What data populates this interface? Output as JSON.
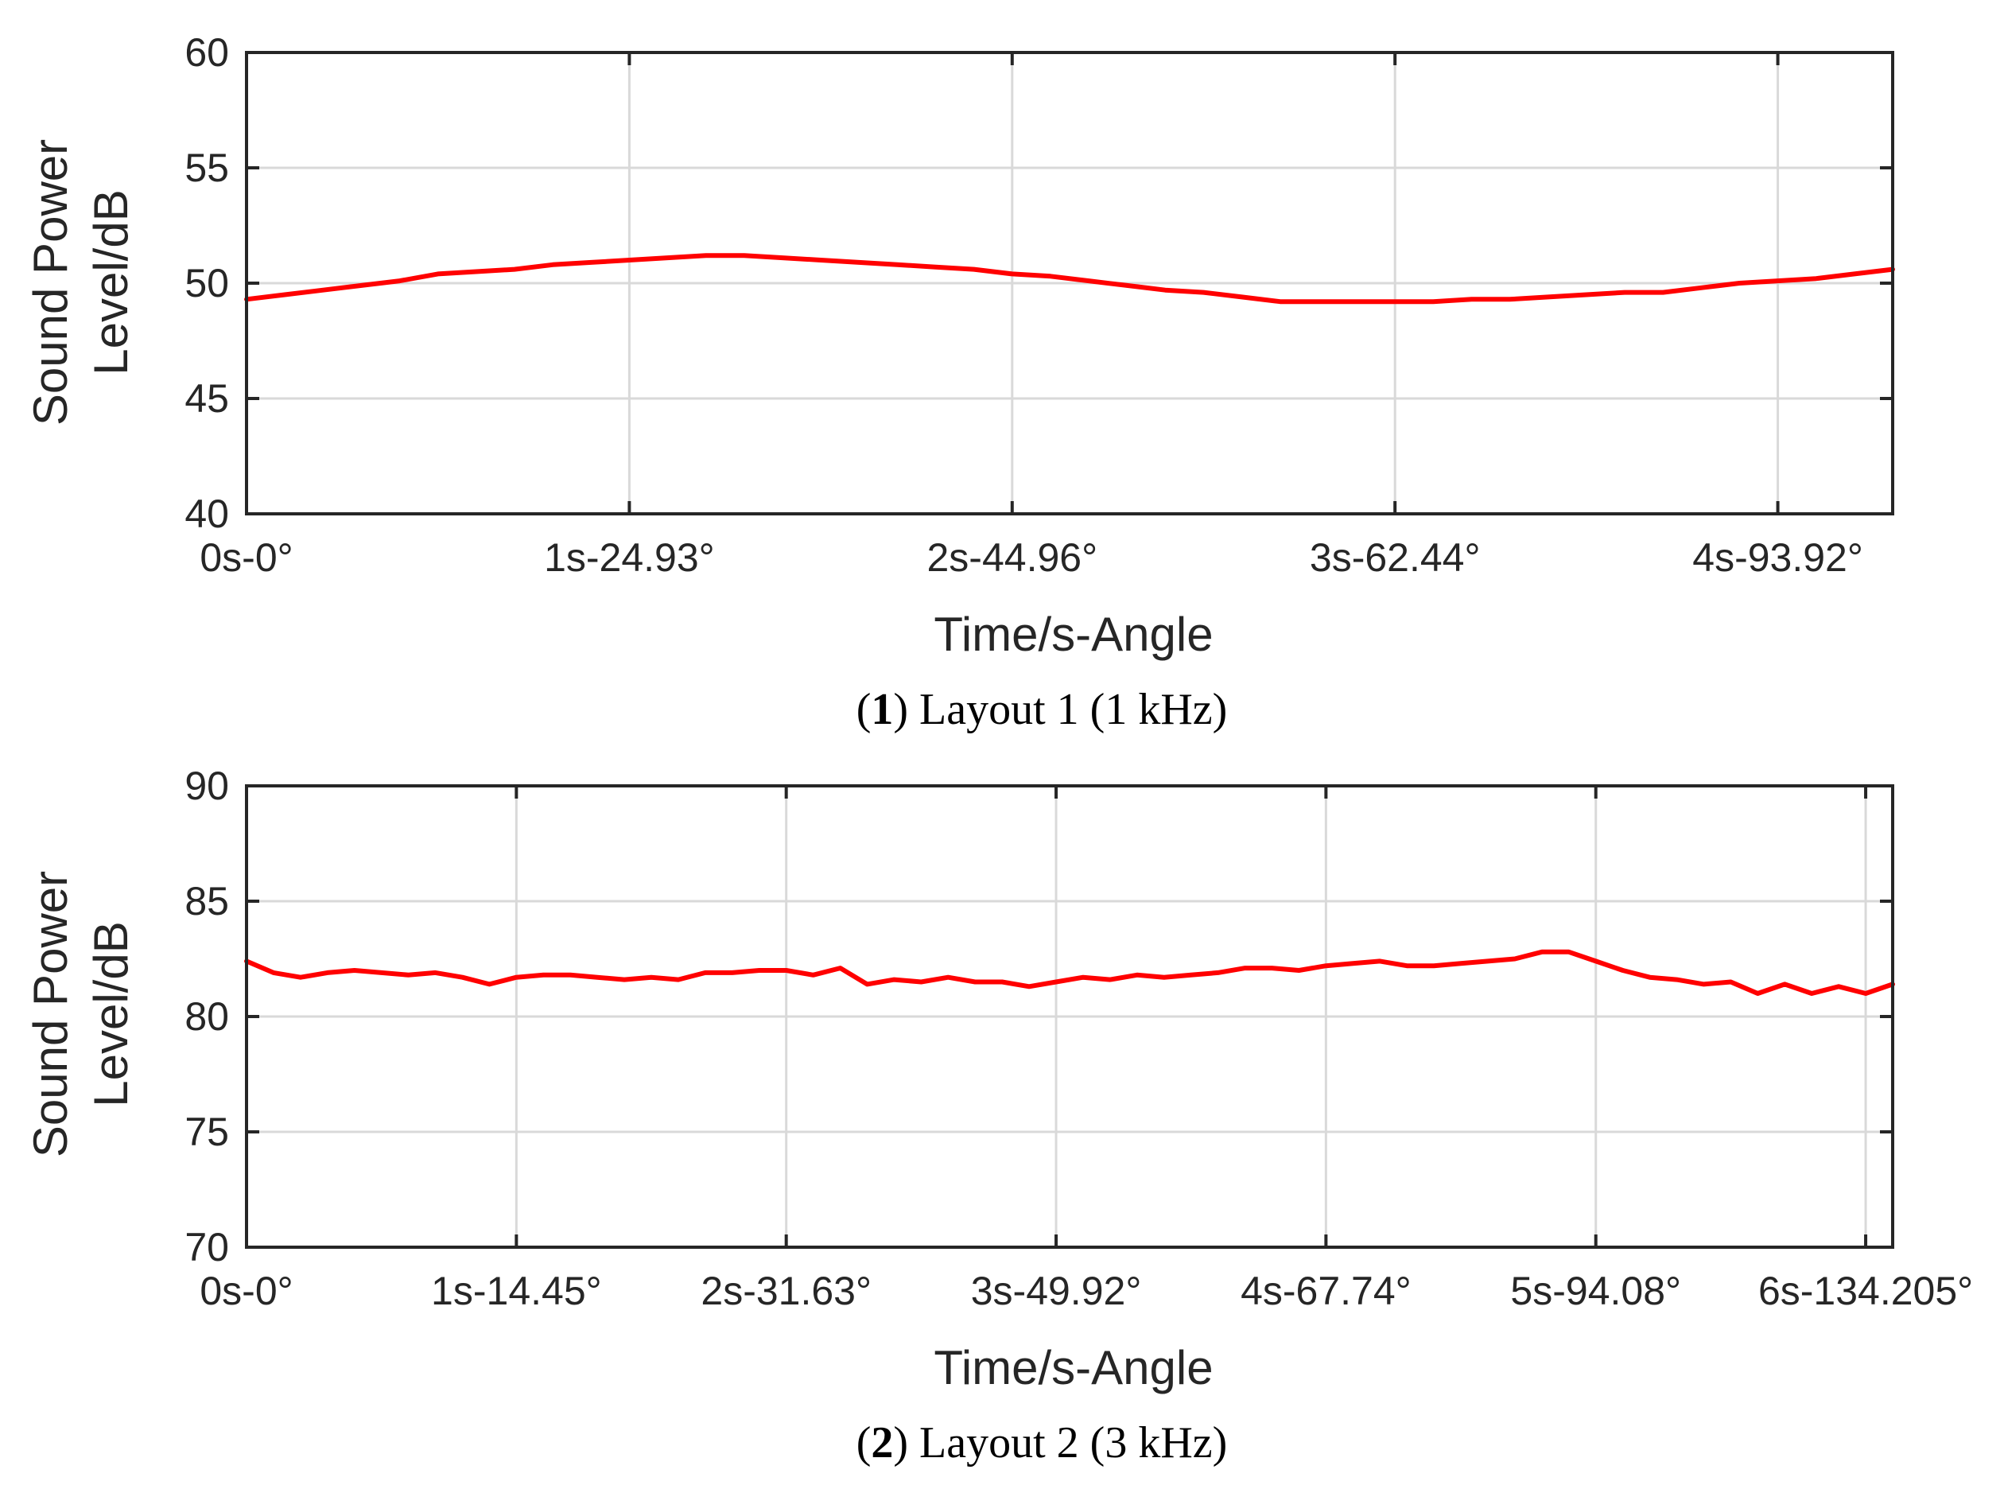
{
  "colors": {
    "series": "#ff0000",
    "axis": "#262626",
    "grid": "#d9d9d9"
  },
  "chart_data": [
    {
      "type": "line",
      "caption": {
        "open": "(",
        "number": "1",
        "close": ")",
        "text": "Layout 1 (1 kHz)"
      },
      "xlabel": "Time/s-Angle",
      "ylabel_line1": "Sound Power",
      "ylabel_line2": "Level/dB",
      "xlim": [
        0,
        4.3
      ],
      "ylim": [
        40,
        60
      ],
      "yticks": [
        40,
        45,
        50,
        55,
        60
      ],
      "xticks": [
        {
          "value": 0,
          "label": "0s-0°"
        },
        {
          "value": 1,
          "label": "1s-24.93°"
        },
        {
          "value": 2,
          "label": "2s-44.96°"
        },
        {
          "value": 3,
          "label": "3s-62.44°"
        },
        {
          "value": 4,
          "label": "4s-93.92°"
        }
      ],
      "grid": true,
      "series": [
        {
          "name": "Layout 1",
          "x": [
            0,
            0.1,
            0.2,
            0.3,
            0.4,
            0.5,
            0.6,
            0.7,
            0.8,
            0.9,
            1.0,
            1.1,
            1.2,
            1.3,
            1.4,
            1.5,
            1.6,
            1.7,
            1.8,
            1.9,
            2.0,
            2.1,
            2.2,
            2.3,
            2.4,
            2.5,
            2.6,
            2.7,
            2.8,
            2.9,
            3.0,
            3.1,
            3.2,
            3.3,
            3.4,
            3.5,
            3.6,
            3.7,
            3.8,
            3.9,
            4.0,
            4.1,
            4.2,
            4.3
          ],
          "values": [
            49.3,
            49.5,
            49.7,
            49.9,
            50.1,
            50.4,
            50.5,
            50.6,
            50.8,
            50.9,
            51.0,
            51.1,
            51.2,
            51.2,
            51.1,
            51.0,
            50.9,
            50.8,
            50.7,
            50.6,
            50.4,
            50.3,
            50.1,
            49.9,
            49.7,
            49.6,
            49.4,
            49.2,
            49.2,
            49.2,
            49.2,
            49.2,
            49.3,
            49.3,
            49.4,
            49.5,
            49.6,
            49.6,
            49.8,
            50.0,
            50.1,
            50.2,
            50.4,
            50.6
          ]
        }
      ]
    },
    {
      "type": "line",
      "caption": {
        "open": "(",
        "number": "2",
        "close": ")",
        "text": "Layout 2 (3 kHz)"
      },
      "xlabel": "Time/s-Angle",
      "ylabel_line1": "Sound Power",
      "ylabel_line2": "Level/dB",
      "xlim": [
        0,
        6.1
      ],
      "ylim": [
        70,
        90
      ],
      "yticks": [
        70,
        75,
        80,
        85,
        90
      ],
      "xticks": [
        {
          "value": 0,
          "label": "0s-0°"
        },
        {
          "value": 1,
          "label": "1s-14.45°"
        },
        {
          "value": 2,
          "label": "2s-31.63°"
        },
        {
          "value": 3,
          "label": "3s-49.92°"
        },
        {
          "value": 4,
          "label": "4s-67.74°"
        },
        {
          "value": 5,
          "label": "5s-94.08°"
        },
        {
          "value": 6,
          "label": "6s-134.205°"
        }
      ],
      "grid": true,
      "series": [
        {
          "name": "Layout 2",
          "x": [
            0,
            0.1,
            0.2,
            0.3,
            0.4,
            0.5,
            0.6,
            0.7,
            0.8,
            0.9,
            1.0,
            1.1,
            1.2,
            1.3,
            1.4,
            1.5,
            1.6,
            1.7,
            1.8,
            1.9,
            2.0,
            2.1,
            2.2,
            2.3,
            2.4,
            2.5,
            2.6,
            2.7,
            2.8,
            2.9,
            3.0,
            3.1,
            3.2,
            3.3,
            3.4,
            3.5,
            3.6,
            3.7,
            3.8,
            3.9,
            4.0,
            4.1,
            4.2,
            4.3,
            4.4,
            4.5,
            4.6,
            4.7,
            4.8,
            4.9,
            5.0,
            5.1,
            5.2,
            5.3,
            5.4,
            5.5,
            5.6,
            5.7,
            5.8,
            5.9,
            6.0,
            6.1
          ],
          "values": [
            82.4,
            81.9,
            81.7,
            81.9,
            82.0,
            81.9,
            81.8,
            81.9,
            81.7,
            81.4,
            81.7,
            81.8,
            81.8,
            81.7,
            81.6,
            81.7,
            81.6,
            81.9,
            81.9,
            82.0,
            82.0,
            81.8,
            82.1,
            81.4,
            81.6,
            81.5,
            81.7,
            81.5,
            81.5,
            81.3,
            81.5,
            81.7,
            81.6,
            81.8,
            81.7,
            81.8,
            81.9,
            82.1,
            82.1,
            82.0,
            82.2,
            82.3,
            82.4,
            82.2,
            82.2,
            82.3,
            82.4,
            82.5,
            82.8,
            82.8,
            82.4,
            82.0,
            81.7,
            81.6,
            81.4,
            81.5,
            81.0,
            81.4,
            81.0,
            81.3,
            81.0,
            81.4
          ]
        }
      ]
    }
  ]
}
